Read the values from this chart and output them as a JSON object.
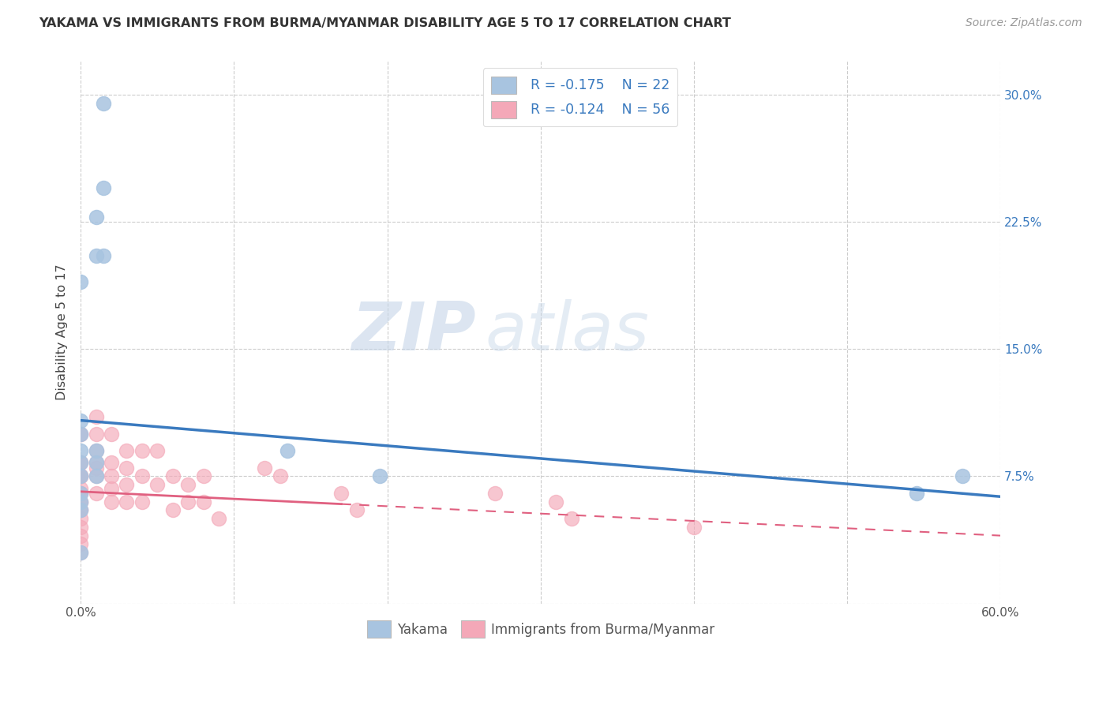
{
  "title": "YAKAMA VS IMMIGRANTS FROM BURMA/MYANMAR DISABILITY AGE 5 TO 17 CORRELATION CHART",
  "source": "Source: ZipAtlas.com",
  "xlabel": "",
  "ylabel": "Disability Age 5 to 17",
  "xlim": [
    0.0,
    0.6
  ],
  "ylim": [
    0.0,
    0.32
  ],
  "xticks": [
    0.0,
    0.1,
    0.2,
    0.3,
    0.4,
    0.5,
    0.6
  ],
  "yticks": [
    0.0,
    0.075,
    0.15,
    0.225,
    0.3
  ],
  "ytick_labels": [
    "",
    "7.5%",
    "15.0%",
    "22.5%",
    "30.0%"
  ],
  "xtick_labels": [
    "0.0%",
    "",
    "",
    "",
    "",
    "",
    "60.0%"
  ],
  "yakama_color": "#a8c4e0",
  "burma_color": "#f4a8b8",
  "yakama_line_color": "#3a7abf",
  "burma_line_color": "#e06080",
  "legend_r_yakama": "R = -0.175",
  "legend_n_yakama": "N = 22",
  "legend_r_burma": "R = -0.124",
  "legend_n_burma": "N = 56",
  "watermark_zip": "ZIP",
  "watermark_atlas": "atlas",
  "yakama_line_x0": 0.0,
  "yakama_line_y0": 0.108,
  "yakama_line_x1": 0.6,
  "yakama_line_y1": 0.063,
  "burma_line_x0": 0.0,
  "burma_line_y0": 0.066,
  "burma_line_x1": 0.6,
  "burma_line_y1": 0.04,
  "yakama_x": [
    0.015,
    0.015,
    0.01,
    0.01,
    0.015,
    0.0,
    0.0,
    0.0,
    0.0,
    0.01,
    0.0,
    0.01,
    0.01,
    0.135,
    0.195,
    0.0,
    0.0,
    0.575,
    0.545,
    0.0,
    0.0,
    0.0
  ],
  "yakama_y": [
    0.295,
    0.245,
    0.228,
    0.205,
    0.205,
    0.19,
    0.108,
    0.1,
    0.09,
    0.09,
    0.083,
    0.083,
    0.075,
    0.09,
    0.075,
    0.075,
    0.065,
    0.075,
    0.065,
    0.06,
    0.055,
    0.03
  ],
  "burma_x": [
    0.0,
    0.0,
    0.0,
    0.0,
    0.0,
    0.0,
    0.0,
    0.0,
    0.0,
    0.0,
    0.0,
    0.0,
    0.0,
    0.0,
    0.0,
    0.0,
    0.0,
    0.0,
    0.0,
    0.0,
    0.01,
    0.01,
    0.01,
    0.01,
    0.01,
    0.01,
    0.01,
    0.02,
    0.02,
    0.02,
    0.02,
    0.02,
    0.03,
    0.03,
    0.03,
    0.03,
    0.04,
    0.04,
    0.04,
    0.05,
    0.05,
    0.06,
    0.06,
    0.07,
    0.07,
    0.08,
    0.08,
    0.09,
    0.12,
    0.13,
    0.17,
    0.18,
    0.27,
    0.31,
    0.32,
    0.4
  ],
  "burma_y": [
    0.1,
    0.1,
    0.083,
    0.083,
    0.075,
    0.075,
    0.075,
    0.075,
    0.068,
    0.065,
    0.065,
    0.06,
    0.06,
    0.055,
    0.055,
    0.05,
    0.045,
    0.04,
    0.035,
    0.03,
    0.11,
    0.1,
    0.09,
    0.083,
    0.08,
    0.075,
    0.065,
    0.1,
    0.083,
    0.075,
    0.068,
    0.06,
    0.09,
    0.08,
    0.07,
    0.06,
    0.09,
    0.075,
    0.06,
    0.09,
    0.07,
    0.075,
    0.055,
    0.07,
    0.06,
    0.075,
    0.06,
    0.05,
    0.08,
    0.075,
    0.065,
    0.055,
    0.065,
    0.06,
    0.05,
    0.045
  ]
}
